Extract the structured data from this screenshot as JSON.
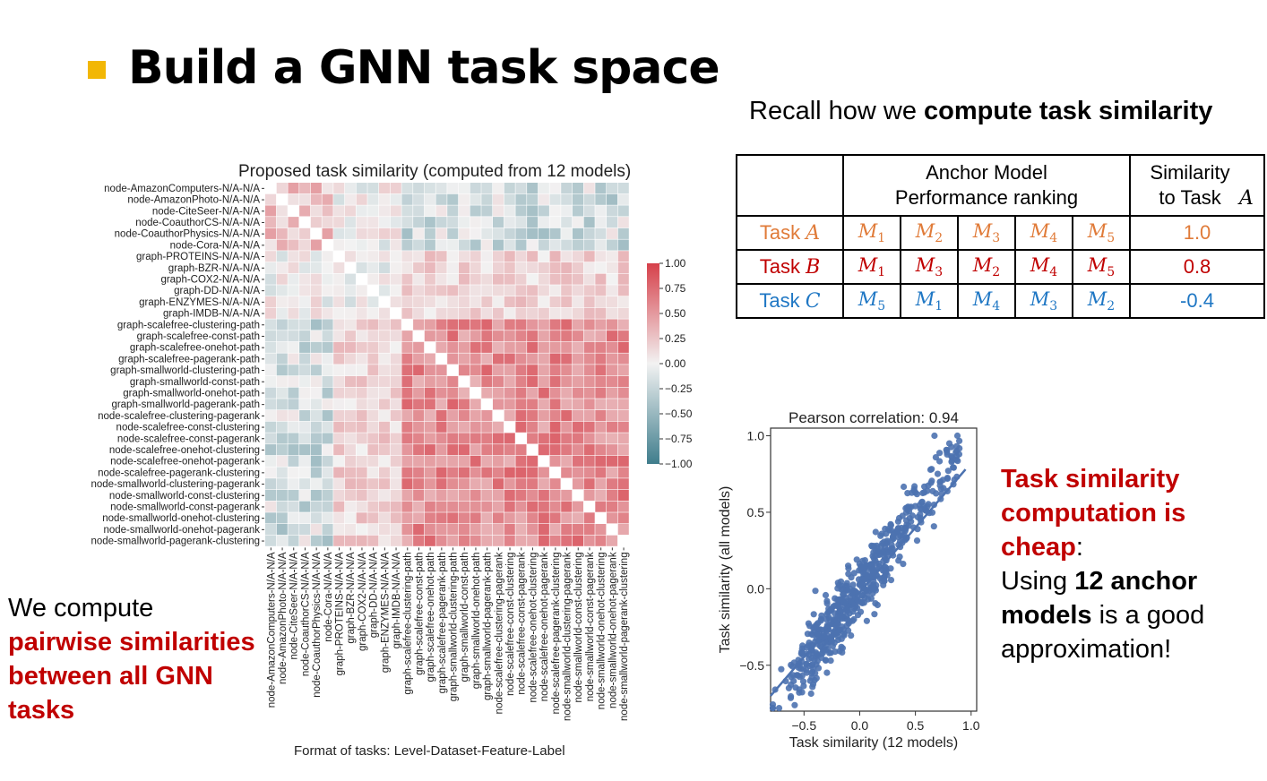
{
  "title": "Build a GNN task space",
  "recall": {
    "prefix": "Recall how we ",
    "bold": "compute task similarity"
  },
  "heatmap": {
    "title": "Proposed task similarity (computed from 12 models)",
    "footer": "Format of tasks: Level-Dataset-Feature-Label",
    "tasks": [
      "node-AmazonComputers-N/A-N/A",
      "node-AmazonPhoto-N/A-N/A",
      "node-CiteSeer-N/A-N/A",
      "node-CoauthorCS-N/A-N/A",
      "node-CoauthorPhysics-N/A-N/A",
      "node-Cora-N/A-N/A",
      "graph-PROTEINS-N/A-N/A",
      "graph-BZR-N/A-N/A",
      "graph-COX2-N/A-N/A",
      "graph-DD-N/A-N/A",
      "graph-ENZYMES-N/A-N/A",
      "graph-IMDB-N/A-N/A",
      "graph-scalefree-clustering-path",
      "graph-scalefree-const-path",
      "graph-scalefree-onehot-path",
      "graph-scalefree-pagerank-path",
      "graph-smallworld-clustering-path",
      "graph-smallworld-const-path",
      "graph-smallworld-onehot-path",
      "graph-smallworld-pagerank-path",
      "node-scalefree-clustering-pagerank",
      "node-scalefree-const-clustering",
      "node-scalefree-const-pagerank",
      "node-scalefree-onehot-clustering",
      "node-scalefree-onehot-pagerank",
      "node-scalefree-pagerank-clustering",
      "node-smallworld-clustering-pagerank",
      "node-smallworld-const-clustering",
      "node-smallworld-const-pagerank",
      "node-smallworld-onehot-clustering",
      "node-smallworld-onehot-pagerank",
      "node-smallworld-pagerank-clustering"
    ],
    "colorbar_ticks": [
      "1.00",
      "0.75",
      "0.50",
      "0.25",
      "0.00",
      "−0.25",
      "−0.50",
      "−0.75",
      "−1.00"
    ],
    "colors": {
      "high": "#d6404a",
      "mid": "#f2f2f2",
      "low": "#3f7d8c"
    }
  },
  "left_note": {
    "line1": "We compute",
    "red": "pairwise similarities between all GNN tasks"
  },
  "table": {
    "header_models": "Anchor Model Performance ranking",
    "header_sim_prefix": "Similarity to Task ",
    "header_sim_var": "A",
    "rows": [
      {
        "label": "Task ",
        "var": "A",
        "ranks": [
          "1",
          "2",
          "3",
          "4",
          "5"
        ],
        "sim": "1.0",
        "color": "#e07b39"
      },
      {
        "label": "Task ",
        "var": "B",
        "ranks": [
          "1",
          "3",
          "2",
          "4",
          "5"
        ],
        "sim": "0.8",
        "color": "#c00000"
      },
      {
        "label": "Task ",
        "var": "C",
        "ranks": [
          "5",
          "1",
          "4",
          "3",
          "2"
        ],
        "sim": "-0.4",
        "color": "#1f77c4"
      }
    ]
  },
  "chart_data": {
    "type": "scatter",
    "title": "Pearson correlation: 0.94",
    "xlabel": "Task similarity (12 models)",
    "ylabel": "Task similarity (all models)",
    "xlim": [
      -0.8,
      1.05
    ],
    "ylim": [
      -0.8,
      1.05
    ],
    "xticks": [
      "−0.5",
      "0.0",
      "0.5",
      "1.0"
    ],
    "yticks": [
      "−0.5",
      "0.0",
      "0.5",
      "1.0"
    ],
    "color": "#4c72b0",
    "n_points": 600,
    "correlation": 0.94
  },
  "right_note": {
    "red": "Task similarity computation is cheap",
    "colon": ":",
    "line_a": "Using ",
    "bold_a": "12 anchor models",
    "line_b": " is a good approximation!"
  }
}
